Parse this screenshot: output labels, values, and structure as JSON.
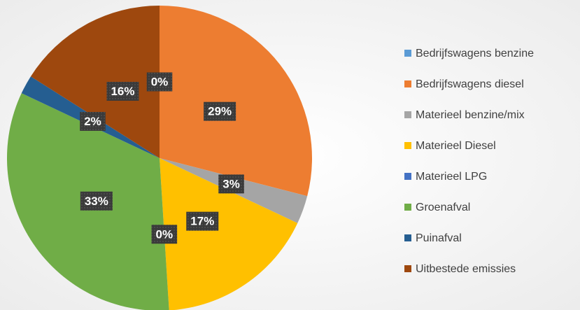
{
  "chart_data": {
    "type": "pie",
    "categories": [
      "Bedrijfswagens benzine",
      "Bedrijfswagens diesel",
      "Materieel benzine/mix",
      "Materieel Diesel",
      "Materieel LPG",
      "Groenafval",
      "Puinafval",
      "Uitbestede emissies"
    ],
    "values": [
      0,
      29,
      3,
      17,
      0,
      33,
      2,
      16
    ],
    "value_labels": [
      "0%",
      "29%",
      "3%",
      "17%",
      "0%",
      "33%",
      "2%",
      "16%"
    ],
    "colors": [
      "#5b9bd5",
      "#ed7d31",
      "#a5a5a5",
      "#ffc000",
      "#4472c4",
      "#70ad47",
      "#255e91",
      "#9e480e"
    ],
    "legend": "right"
  }
}
